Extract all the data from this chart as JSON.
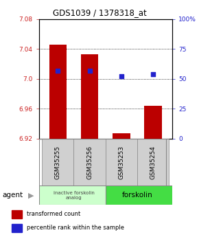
{
  "title": "GDS1039 / 1378318_at",
  "samples": [
    "GSM35255",
    "GSM35256",
    "GSM35253",
    "GSM35254"
  ],
  "bar_values": [
    7.046,
    7.033,
    6.927,
    6.964
  ],
  "bar_baseline": 6.92,
  "percentile_values": [
    57,
    57,
    52,
    54
  ],
  "ylim_left": [
    6.92,
    7.08
  ],
  "ylim_right": [
    0,
    100
  ],
  "yticks_left": [
    6.92,
    6.96,
    7.0,
    7.04,
    7.08
  ],
  "yticks_right": [
    0,
    25,
    50,
    75,
    100
  ],
  "ytick_labels_right": [
    "0",
    "25",
    "50",
    "75",
    "100%"
  ],
  "bar_color": "#bb0000",
  "dot_color": "#2222cc",
  "agent_label": "agent",
  "group1_label": "inactive forskolin\nanalog",
  "group2_label": "forskolin",
  "group1_color": "#ccffcc",
  "group2_color": "#44dd44",
  "sample_box_color": "#d0d0d0",
  "legend_red_label": "transformed count",
  "legend_blue_label": "percentile rank within the sample",
  "bar_width": 0.55
}
